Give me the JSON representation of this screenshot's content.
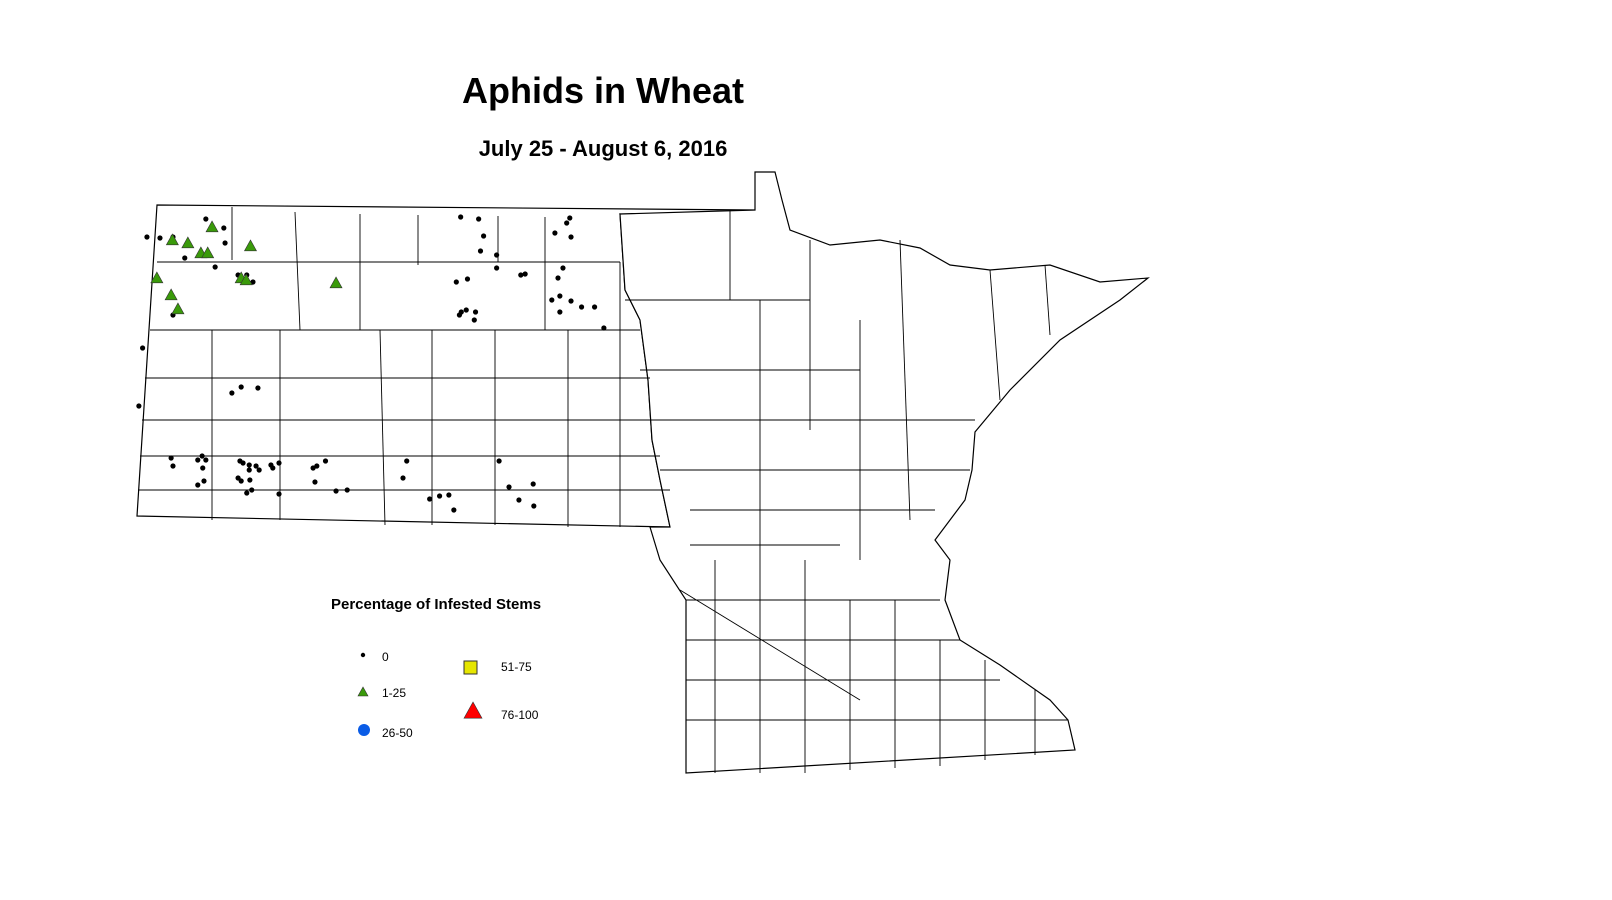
{
  "title": "Aphids in Wheat",
  "subtitle": "July 25 - August 6, 2016",
  "legend": {
    "title": "Percentage of Infested Stems",
    "classes": [
      {
        "label": "0",
        "symbol": "dot",
        "color": "#000000"
      },
      {
        "label": "1-25",
        "symbol": "triangle",
        "color": "#3a9a0a"
      },
      {
        "label": "26-50",
        "symbol": "circle",
        "color": "#0a5ce6"
      },
      {
        "label": "51-75",
        "symbol": "square",
        "color": "#e6e600"
      },
      {
        "label": "76-100",
        "symbol": "triangle",
        "color": "#ff0000"
      }
    ]
  },
  "map": {
    "regions": [
      "North Dakota",
      "Minnesota"
    ],
    "observations_0": [
      [
        -104.18,
        48.75
      ],
      [
        -103.97,
        48.74
      ],
      [
        -103.76,
        48.75
      ],
      [
        -103.23,
        48.93
      ],
      [
        -102.94,
        48.84
      ],
      [
        -102.92,
        48.69
      ],
      [
        -103.57,
        48.54
      ],
      [
        -103.08,
        48.45
      ],
      [
        -102.71,
        48.37
      ],
      [
        -102.57,
        48.37
      ],
      [
        -102.47,
        48.3
      ],
      [
        -104.25,
        47.64
      ],
      [
        -104.31,
        47.06
      ],
      [
        -102.66,
        47.25
      ],
      [
        -102.39,
        47.24
      ],
      [
        -102.81,
        47.19
      ],
      [
        -103.76,
        47.97
      ],
      [
        -99.12,
        48.95
      ],
      [
        -98.83,
        48.93
      ],
      [
        -98.75,
        48.76
      ],
      [
        -98.8,
        48.61
      ],
      [
        -98.54,
        48.57
      ],
      [
        -98.54,
        48.44
      ],
      [
        -99.01,
        48.33
      ],
      [
        -99.19,
        48.3
      ],
      [
        -99.11,
        48.0
      ],
      [
        -99.03,
        48.02
      ],
      [
        -98.88,
        48.0
      ],
      [
        -98.9,
        47.92
      ],
      [
        -99.14,
        47.97
      ],
      [
        -98.15,
        48.37
      ],
      [
        -98.08,
        48.38
      ],
      [
        -97.55,
        48.34
      ],
      [
        -97.47,
        48.44
      ],
      [
        -97.36,
        48.94
      ],
      [
        -97.41,
        48.89
      ],
      [
        -97.34,
        48.75
      ],
      [
        -97.6,
        48.79
      ],
      [
        -97.52,
        48.16
      ],
      [
        -97.65,
        48.12
      ],
      [
        -97.34,
        48.11
      ],
      [
        -97.17,
        48.05
      ],
      [
        -96.96,
        48.05
      ],
      [
        -96.81,
        47.84
      ],
      [
        -97.52,
        48.0
      ],
      [
        -103.79,
        46.54
      ],
      [
        -103.76,
        46.46
      ],
      [
        -103.36,
        46.52
      ],
      [
        -103.29,
        46.56
      ],
      [
        -103.23,
        46.52
      ],
      [
        -103.28,
        46.44
      ],
      [
        -103.36,
        46.27
      ],
      [
        -103.26,
        46.31
      ],
      [
        -102.68,
        46.51
      ],
      [
        -102.63,
        46.49
      ],
      [
        -102.53,
        46.47
      ],
      [
        -102.42,
        46.46
      ],
      [
        -102.53,
        46.42
      ],
      [
        -102.37,
        46.42
      ],
      [
        -102.18,
        46.47
      ],
      [
        -102.15,
        46.44
      ],
      [
        -102.05,
        46.49
      ],
      [
        -102.71,
        46.34
      ],
      [
        -102.66,
        46.31
      ],
      [
        -102.52,
        46.32
      ],
      [
        -102.57,
        46.19
      ],
      [
        -102.49,
        46.22
      ],
      [
        -102.05,
        46.18
      ],
      [
        -101.3,
        46.51
      ],
      [
        -101.44,
        46.46
      ],
      [
        -101.5,
        46.44
      ],
      [
        -101.47,
        46.3
      ],
      [
        -101.13,
        46.21
      ],
      [
        -100.95,
        46.22
      ],
      [
        -99.99,
        46.51
      ],
      [
        -100.05,
        46.34
      ],
      [
        -99.62,
        46.13
      ],
      [
        -99.46,
        46.16
      ],
      [
        -99.31,
        46.17
      ],
      [
        -99.23,
        46.02
      ],
      [
        -98.5,
        46.51
      ],
      [
        -98.34,
        46.25
      ],
      [
        -97.95,
        46.28
      ],
      [
        -98.18,
        46.12
      ],
      [
        -97.94,
        46.06
      ]
    ],
    "observations_1_25": [
      [
        -103.13,
        48.85
      ],
      [
        -103.77,
        48.72
      ],
      [
        -103.52,
        48.69
      ],
      [
        -103.31,
        48.59
      ],
      [
        -103.2,
        48.59
      ],
      [
        -102.51,
        48.66
      ],
      [
        -104.02,
        48.34
      ],
      [
        -102.66,
        48.34
      ],
      [
        -102.58,
        48.32
      ],
      [
        -101.13,
        48.29
      ],
      [
        -103.79,
        48.17
      ],
      [
        -103.68,
        48.03
      ]
    ]
  }
}
